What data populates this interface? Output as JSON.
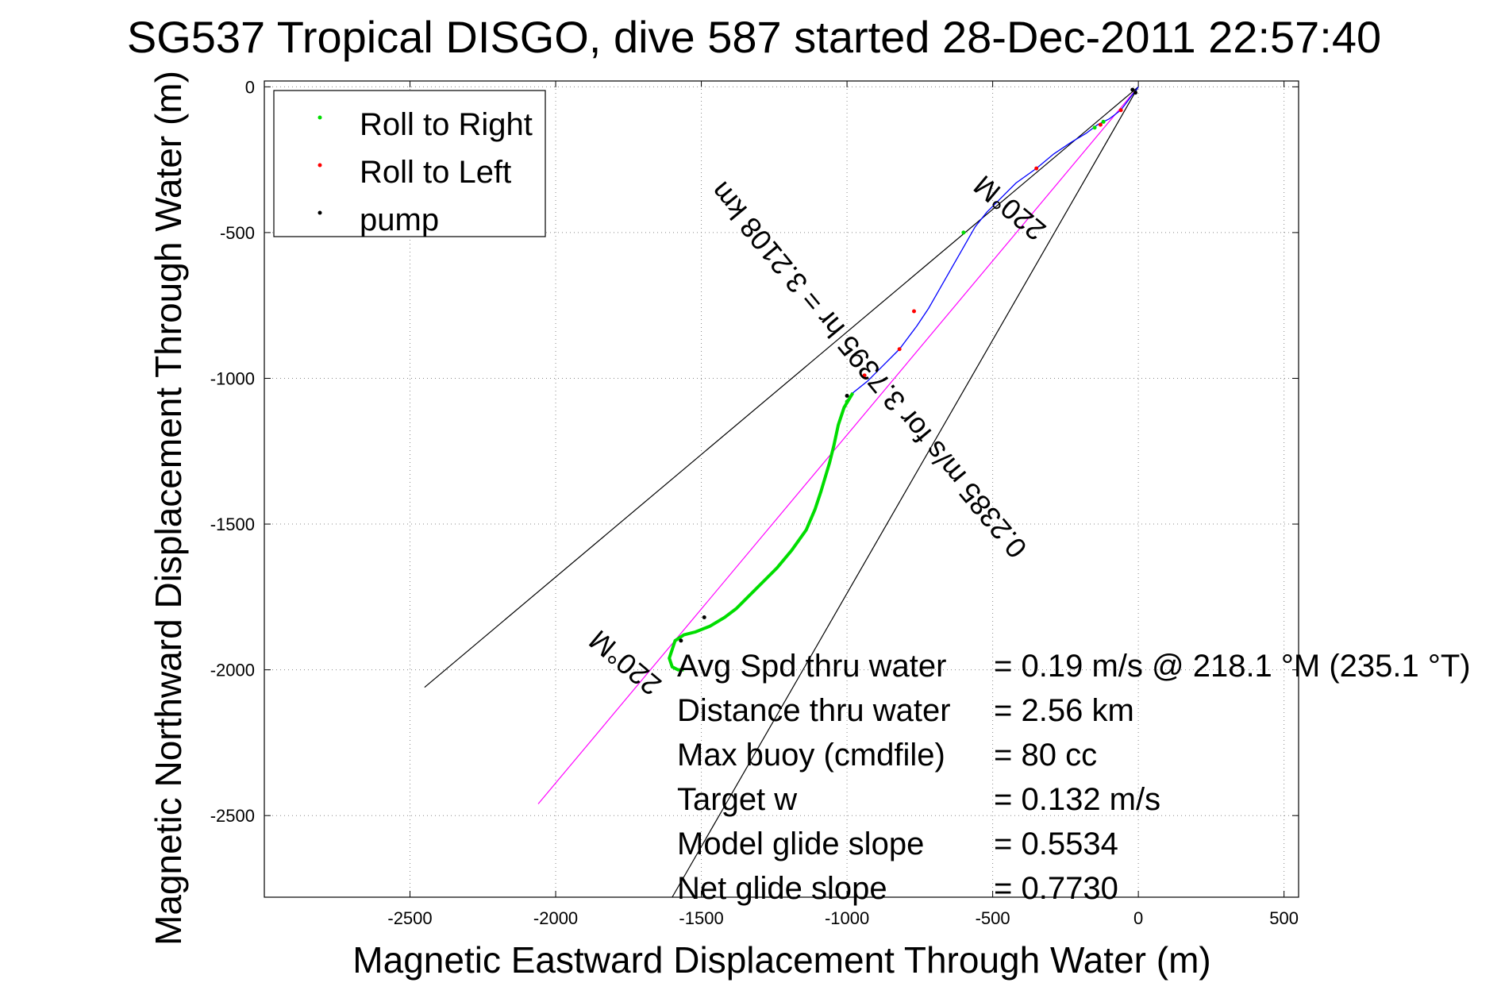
{
  "chart_data": {
    "type": "line",
    "title": "SG537 Tropical DISGO, dive 587 started 28-Dec-2011 22:57:40",
    "xlabel": "Magnetic Eastward Displacement Through Water (m)",
    "ylabel": "Magnetic Northward Displacement Through Water (m)",
    "xlim": [
      -3000,
      550
    ],
    "ylim": [
      -2780,
      20
    ],
    "grid": true,
    "x_ticks": [
      -2500,
      -2000,
      -1500,
      -1000,
      -500,
      0,
      500
    ],
    "y_ticks": [
      0,
      -500,
      -1000,
      -1500,
      -2000,
      -2500
    ],
    "x_tick_labels": [
      "-2500",
      "-2000",
      "-1500",
      "-1000",
      "-500",
      "0",
      "500"
    ],
    "y_tick_labels": [
      "0",
      "-500",
      "-1000",
      "-1500",
      "-2000",
      "-2500"
    ],
    "legend_position": "top-left",
    "legend": [
      {
        "label": "Roll to Right",
        "color": "#00dd00"
      },
      {
        "label": "Roll to Left",
        "color": "#ff0000"
      },
      {
        "label": "pump",
        "color": "#000000"
      }
    ],
    "track": {
      "color": "#0000ff",
      "x": [
        0,
        -30,
        -60,
        -100,
        -140,
        -180,
        -230,
        -290,
        -350,
        -420,
        -480,
        -520,
        -560,
        -600,
        -640,
        -680,
        -720,
        -760,
        -820,
        -880,
        -930,
        -980,
        -1010,
        -1030,
        -1045,
        -1060,
        -1075,
        -1090,
        -1110,
        -1140,
        -1190,
        -1240,
        -1290,
        -1340,
        -1380,
        -1420,
        -1470,
        -1520,
        -1560,
        -1590,
        -1610,
        -1600,
        -1580,
        -1560
      ],
      "y": [
        0,
        -40,
        -80,
        -110,
        -130,
        -160,
        -190,
        -230,
        -280,
        -330,
        -390,
        -430,
        -480,
        -550,
        -620,
        -690,
        -760,
        -820,
        -900,
        -960,
        -1010,
        -1050,
        -1100,
        -1160,
        -1230,
        -1290,
        -1340,
        -1390,
        -1450,
        -1520,
        -1590,
        -1650,
        -1700,
        -1750,
        -1790,
        -1820,
        -1850,
        -1870,
        -1880,
        -1900,
        -1960,
        -1990,
        -2000,
        -2000
      ],
      "roll_right_segments": [
        [
          900,
          1390,
          1990
        ],
        [
          1400,
          1470,
          1520
        ]
      ],
      "roll_left_points": [
        [
          -60,
          -80
        ],
        [
          -130,
          -130
        ],
        [
          -770,
          -770
        ],
        [
          -940,
          -990
        ],
        [
          -820,
          -900
        ],
        [
          -350,
          -280
        ]
      ],
      "pump_points": [
        [
          -1000,
          -1060
        ],
        [
          -1490,
          -1820
        ],
        [
          -1570,
          -1900
        ],
        [
          -20,
          -10
        ],
        [
          -10,
          -20
        ]
      ]
    },
    "lines": [
      {
        "name": "magenta",
        "color": "#ff00ff",
        "x": [
          0,
          -2060
        ],
        "y": [
          0,
          -2460
        ]
      },
      {
        "name": "wedge-left",
        "color": "#000000",
        "x": [
          0,
          -2450
        ],
        "y": [
          0,
          -2060
        ]
      },
      {
        "name": "wedge-right",
        "color": "#000000",
        "x": [
          0,
          -1600
        ],
        "y": [
          0,
          -2780
        ]
      }
    ],
    "annotations": {
      "heading_top": "220°M",
      "speed_line": "0.2385 m/s for 3.7395 hr = 3.2108 km",
      "heading_bottom": "220°M"
    },
    "stats": [
      {
        "label": "Avg Spd thru water",
        "value": "=  0.19 m/s @ 218.1 °M (235.1 °T)"
      },
      {
        "label": "Distance thru water",
        "value": "=  2.56 km"
      },
      {
        "label": "Max buoy (cmdfile)",
        "value": "= 80 cc"
      },
      {
        "label": "Target w",
        "value": "= 0.132 m/s"
      },
      {
        "label": "Model glide slope",
        "value": "= 0.5534"
      },
      {
        "label": "Net glide slope",
        "value": "= 0.7730"
      }
    ]
  }
}
